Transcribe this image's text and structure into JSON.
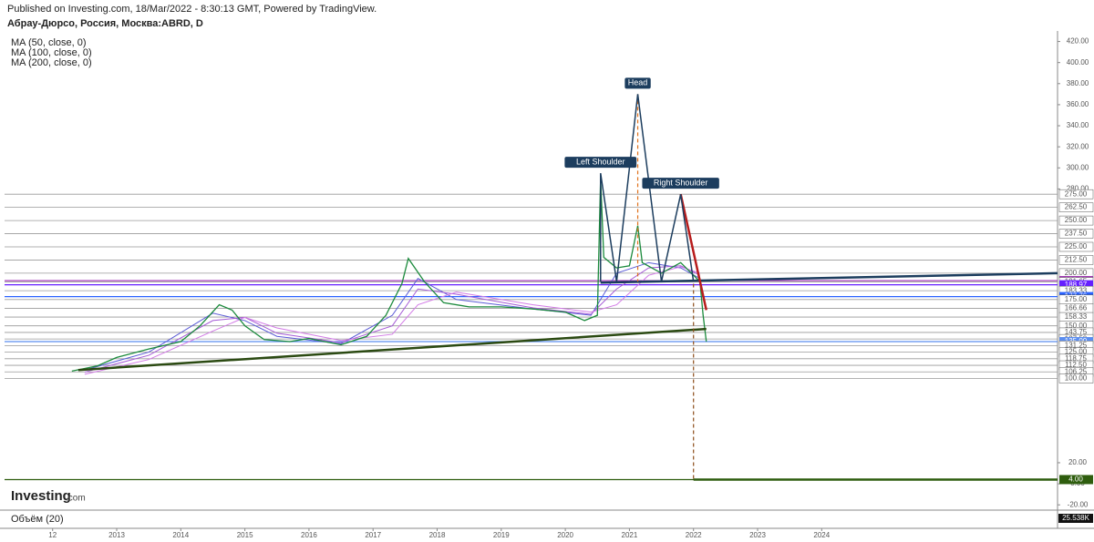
{
  "chart_data": {
    "type": "line",
    "published": "Published on Investing.com, 18/Mar/2022 - 8:30:13 GMT, Powered by TradingView.",
    "title": "Абрау-Дюрсо, Россия, Москва:ABRD, D",
    "indicators": [
      "MA (50, close, 0)",
      "MA (100, close, 0)",
      "MA (200, close, 0)"
    ],
    "logo": {
      "main": "Investing",
      "suffix": ".com"
    },
    "volume_title": "Объём (20)",
    "volume_last": {
      "value": 25538,
      "label": "25.538K"
    },
    "xlim": [
      2011.25,
      2027.68
    ],
    "xticks": [
      {
        "value": 2012,
        "label": "12"
      },
      2013,
      2014,
      2015,
      2016,
      2017,
      2018,
      2019,
      2020,
      2021,
      2022,
      2023,
      2024
    ],
    "ylim": [
      -25,
      430
    ],
    "yticks": [
      {
        "value": -20,
        "label": "-20.00"
      },
      {
        "value": 0,
        "label": "0.00"
      },
      {
        "value": 20,
        "label": "20.00"
      },
      {
        "value": 280,
        "label": "280.00"
      },
      {
        "value": 300,
        "label": "300.00"
      },
      {
        "value": 320,
        "label": "320.00"
      },
      {
        "value": 340,
        "label": "340.00"
      },
      {
        "value": 360,
        "label": "360.00"
      },
      {
        "value": 380,
        "label": "380.00"
      },
      {
        "value": 400,
        "label": "400.00"
      },
      {
        "value": 420,
        "label": "420.00"
      }
    ],
    "x": [
      2012.3,
      2012.7,
      2013.0,
      2013.5,
      2014.0,
      2014.3,
      2014.6,
      2014.8,
      2015.0,
      2015.3,
      2015.7,
      2016.0,
      2016.5,
      2016.9,
      2017.2,
      2017.45,
      2017.55,
      2017.8,
      2018.1,
      2018.5,
      2019.0,
      2019.5,
      2020.0,
      2020.3,
      2020.5,
      2020.55,
      2020.6,
      2020.8,
      2021.0,
      2021.13,
      2021.2,
      2021.5,
      2021.8,
      2022.0,
      2022.1,
      2022.15,
      2022.2
    ],
    "series": [
      {
        "color": "#1b8a3c",
        "values": [
          107,
          112,
          120,
          128,
          135,
          150,
          170,
          165,
          150,
          137,
          135,
          138,
          132,
          140,
          160,
          190,
          214,
          192,
          172,
          168,
          168,
          166,
          163,
          155,
          160,
          290,
          215,
          205,
          207,
          245,
          210,
          200,
          210,
          198,
          192,
          160,
          135
        ]
      }
    ],
    "ma_x": [
      2012.5,
      2013.5,
      2014.5,
      2015.0,
      2015.5,
      2016.5,
      2017.3,
      2017.7,
      2018.3,
      2019.5,
      2020.4,
      2020.8,
      2021.3,
      2021.8,
      2022.1
    ],
    "ma_series": [
      {
        "color": "#5b5bd6",
        "values": [
          108,
          125,
          162,
          155,
          140,
          133,
          160,
          195,
          175,
          166,
          160,
          200,
          210,
          205,
          195
        ]
      },
      {
        "color": "#a55ad6",
        "values": [
          106,
          122,
          155,
          158,
          143,
          134,
          150,
          185,
          180,
          167,
          161,
          185,
          205,
          207,
          198
        ]
      },
      {
        "color": "#d27ae6",
        "values": [
          104,
          118,
          145,
          158,
          148,
          136,
          142,
          170,
          182,
          170,
          163,
          170,
          198,
          206,
          200
        ]
      }
    ],
    "levels": [
      {
        "value": 275,
        "label": "275.00"
      },
      {
        "value": 262.5,
        "label": "262.50"
      },
      {
        "value": 250,
        "label": "250.00"
      },
      {
        "value": 237.5,
        "label": "237.50"
      },
      {
        "value": 225,
        "label": "225.00"
      },
      {
        "value": 212.5,
        "label": "212.50"
      },
      {
        "value": 200,
        "label": "200.00"
      },
      {
        "value": 192.91,
        "label": "192.91",
        "color": "#9c27b0"
      },
      {
        "value": 191.65,
        "label": "191.65"
      },
      {
        "value": 188.97,
        "label": "188.97",
        "color": "#651fff"
      },
      {
        "value": 183.33,
        "label": "183.33"
      },
      {
        "value": 177.76,
        "label": "177.76",
        "color": "#2962ff"
      },
      {
        "value": 175,
        "label": "175.00"
      },
      {
        "value": 166.66,
        "label": "166.66"
      },
      {
        "value": 158.33,
        "label": "158.33"
      },
      {
        "value": 150,
        "label": "150.00"
      },
      {
        "value": 143.75,
        "label": "143.75"
      },
      {
        "value": 137.5,
        "label": "137.50"
      },
      {
        "value": 135,
        "label": "135.00",
        "color": "#5b8def"
      },
      {
        "value": 131.25,
        "label": "131.25"
      },
      {
        "value": 125,
        "label": "125.00"
      },
      {
        "value": 118.75,
        "label": "118.75"
      },
      {
        "value": 112.5,
        "label": "112.50"
      },
      {
        "value": 106.25,
        "label": "106.25"
      },
      {
        "value": 100,
        "label": "100.00"
      },
      {
        "value": 4,
        "label": "4.00",
        "color": "#2e5d0e"
      }
    ],
    "pattern": {
      "color": "#1c3d5e",
      "x": [
        2020.55,
        2020.55,
        2020.8,
        2021.13,
        2021.5,
        2021.8,
        2022.0
      ],
      "y": [
        192,
        295,
        192,
        370,
        192,
        275,
        192
      ],
      "labels": [
        null,
        "Left Shoulder",
        null,
        "Head",
        null,
        "Right Shoulder",
        null
      ]
    },
    "trendlines": [
      {
        "color": "#2b4a12",
        "x": [
          2012.4,
          2022.2
        ],
        "y": [
          108,
          147
        ]
      },
      {
        "color": "#1c3d5e",
        "x": [
          2020.55,
          2027.68
        ],
        "y": [
          191,
          200
        ]
      },
      {
        "color": "#b71c1c",
        "x": [
          2021.8,
          2022.2
        ],
        "y": [
          275,
          165
        ]
      },
      {
        "color": "#2e5d0e",
        "x": [
          2022.0,
          2027.68
        ],
        "y": [
          4,
          4
        ]
      },
      {
        "color": "#8d4e1a",
        "dash": true,
        "x": [
          2022.0,
          2022.0
        ],
        "y": [
          190,
          4
        ]
      },
      {
        "color": "#e0701a",
        "dash": true,
        "x": [
          2021.13,
          2021.13
        ],
        "y": [
          370,
          192
        ]
      }
    ]
  }
}
